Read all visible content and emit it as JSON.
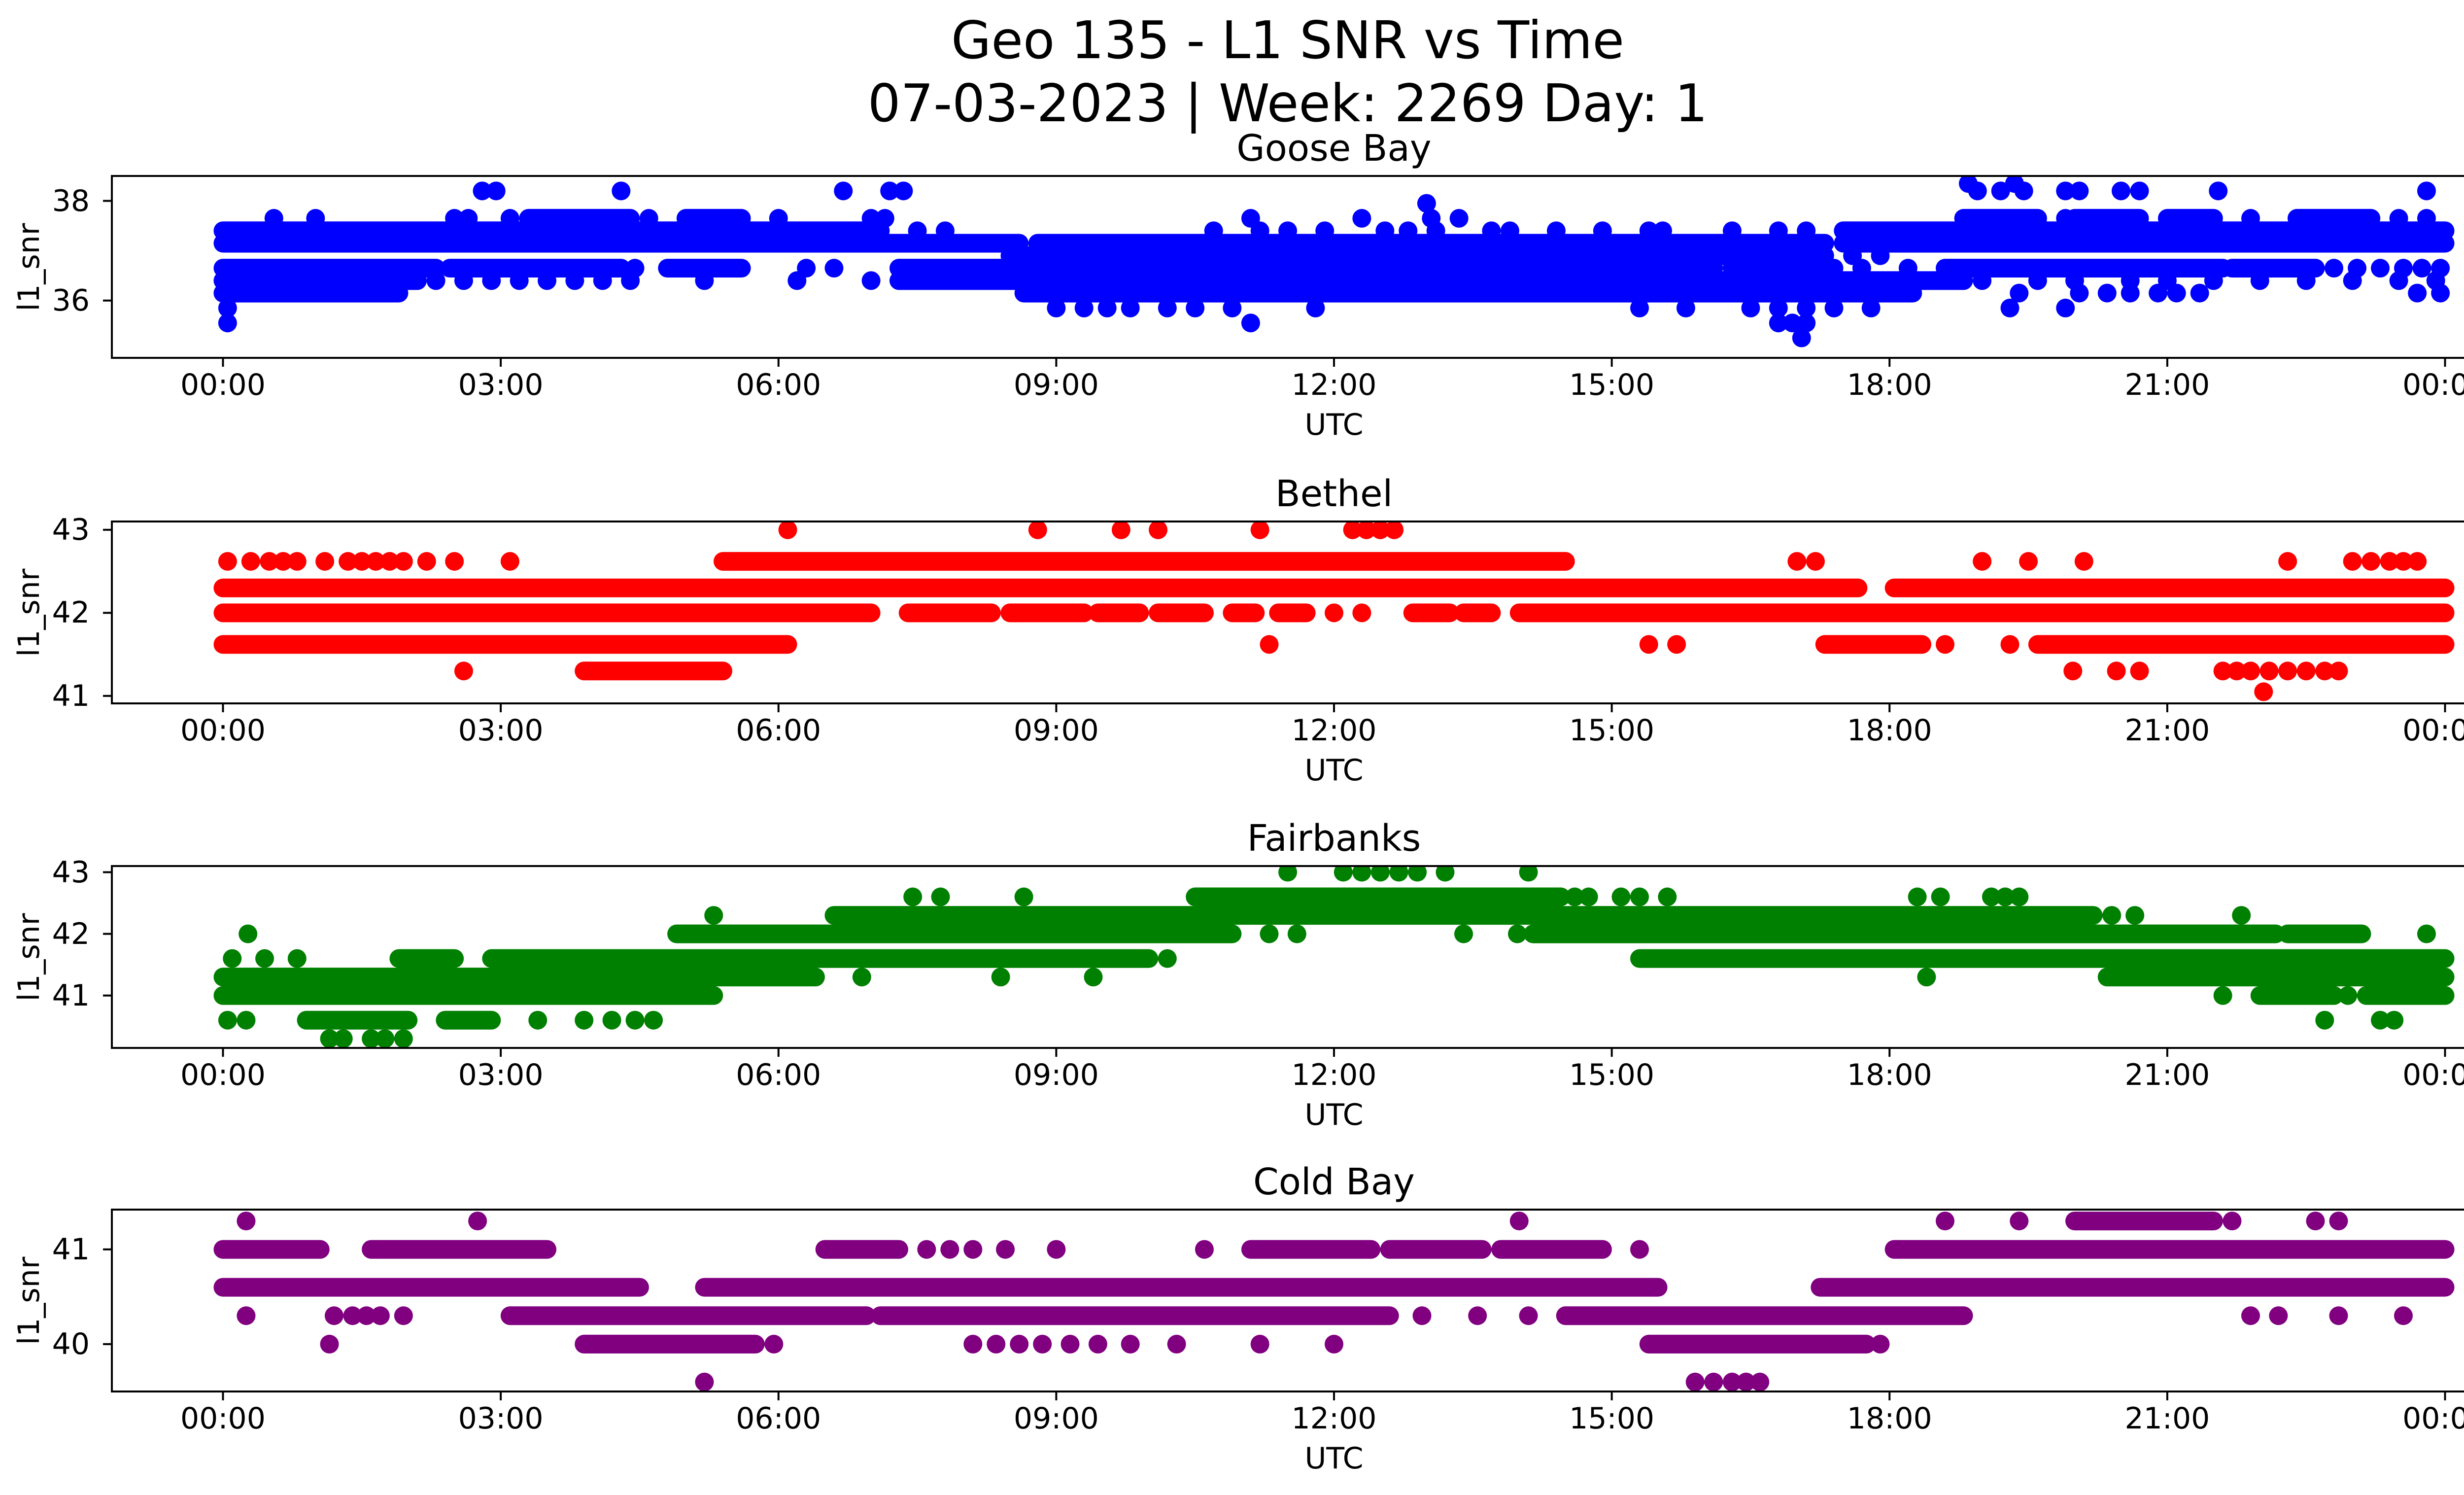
{
  "title": {
    "line1": "Geo 135 - L1 SNR vs Time",
    "line2": "07-03-2023 | Week: 2269 Day: 1"
  },
  "chart_data": [
    {
      "type": "scatter",
      "title": "Goose Bay",
      "color": "#0000ff",
      "xlabel": "UTC",
      "ylabel": "l1_snr",
      "x_ticks": [
        "00:00",
        "03:00",
        "06:00",
        "09:00",
        "12:00",
        "15:00",
        "18:00",
        "21:00",
        "00:00"
      ],
      "xlim_hours": [
        -1.2,
        25.2
      ],
      "ylim": [
        34.85,
        38.5
      ],
      "y_ticks": [
        {
          "v": 36,
          "label": "36"
        },
        {
          "v": 38,
          "label": "38"
        }
      ],
      "legend": "none",
      "grid": false,
      "bands": [
        {
          "y": 38.35,
          "solid": [],
          "dots": [
            18.85,
            19.35
          ]
        },
        {
          "y": 38.2,
          "solid": [],
          "dots": [
            2.8,
            2.95,
            4.3,
            6.7,
            7.2,
            7.35,
            18.95,
            19.2,
            19.45,
            19.9,
            20.05,
            20.5,
            20.7,
            21.55,
            23.8
          ]
        },
        {
          "y": 37.95,
          "solid": [],
          "dots": [
            13.0
          ]
        },
        {
          "y": 37.65,
          "solid": [
            [
              3.3,
              4.4
            ],
            [
              5.0,
              5.6
            ],
            [
              18.8,
              19.6
            ],
            [
              20.0,
              20.7
            ],
            [
              21.0,
              21.5
            ],
            [
              22.4,
              23.2
            ]
          ],
          "dots": [
            0.55,
            1.0,
            2.5,
            2.65,
            3.1,
            4.6,
            6.0,
            7.0,
            7.15,
            11.1,
            12.3,
            13.05,
            13.35,
            19.9,
            21.9,
            23.5,
            23.8
          ]
        },
        {
          "y": 37.4,
          "solid": [
            [
              0.0,
              7.1
            ],
            [
              17.5,
              24.0
            ]
          ],
          "dots": [
            7.5,
            7.8,
            10.7,
            11.2,
            11.5,
            11.9,
            12.55,
            12.8,
            13.1,
            13.7,
            13.9,
            14.4,
            14.9,
            15.4,
            15.55,
            16.3,
            16.8,
            17.1
          ]
        },
        {
          "y": 37.15,
          "solid": [
            [
              0.0,
              8.6
            ],
            [
              8.8,
              17.3
            ],
            [
              17.5,
              24.0
            ]
          ],
          "dots": []
        },
        {
          "y": 36.9,
          "solid": [
            [
              8.5,
              17.3
            ]
          ],
          "dots": [
            17.6,
            17.9
          ]
        },
        {
          "y": 36.65,
          "solid": [
            [
              0.0,
              2.3
            ],
            [
              2.45,
              4.3
            ],
            [
              4.8,
              5.6
            ],
            [
              7.3,
              16.1
            ],
            [
              16.3,
              17.4
            ],
            [
              18.6,
              21.6
            ],
            [
              21.7,
              22.6
            ]
          ],
          "dots": [
            4.45,
            6.3,
            6.6,
            17.7,
            18.2,
            22.8,
            23.05,
            23.3,
            23.55,
            23.75,
            23.95
          ]
        },
        {
          "y": 36.4,
          "solid": [
            [
              0.0,
              2.1
            ],
            [
              7.3,
              18.8
            ]
          ],
          "dots": [
            2.3,
            2.6,
            2.9,
            3.2,
            3.5,
            3.8,
            4.1,
            4.4,
            5.2,
            6.2,
            7.0,
            19.0,
            19.6,
            20.0,
            20.6,
            21.0,
            21.5,
            22.0,
            22.5,
            23.0,
            23.5,
            23.9
          ]
        },
        {
          "y": 36.15,
          "solid": [
            [
              0.0,
              1.9
            ],
            [
              8.65,
              18.25
            ]
          ],
          "dots": [
            19.4,
            20.05,
            20.35,
            20.6,
            20.9,
            21.1,
            21.35,
            23.7,
            23.95
          ]
        },
        {
          "y": 35.85,
          "solid": [],
          "dots": [
            0.05,
            9.0,
            9.3,
            9.55,
            9.8,
            10.2,
            10.5,
            10.9,
            11.8,
            15.3,
            15.8,
            16.5,
            16.8,
            17.1,
            17.4,
            17.8,
            19.3,
            19.9
          ]
        },
        {
          "y": 35.55,
          "solid": [],
          "dots": [
            0.05,
            11.1,
            16.8,
            16.95,
            17.1
          ]
        },
        {
          "y": 35.25,
          "solid": [],
          "dots": [
            17.05
          ]
        }
      ]
    },
    {
      "type": "scatter",
      "title": "Bethel",
      "color": "#ff0000",
      "xlabel": "UTC",
      "ylabel": "l1_snr",
      "x_ticks": [
        "00:00",
        "03:00",
        "06:00",
        "09:00",
        "12:00",
        "15:00",
        "18:00",
        "21:00",
        "00:00"
      ],
      "xlim_hours": [
        -1.2,
        25.2
      ],
      "ylim": [
        40.91,
        43.1
      ],
      "y_ticks": [
        {
          "v": 41,
          "label": "41"
        },
        {
          "v": 42,
          "label": "42"
        },
        {
          "v": 43,
          "label": "43"
        }
      ],
      "legend": "none",
      "grid": false,
      "bands": [
        {
          "y": 43.0,
          "solid": [],
          "dots": [
            6.1,
            8.8,
            9.7,
            10.1,
            11.2,
            12.2,
            12.35,
            12.5,
            12.65
          ]
        },
        {
          "y": 42.62,
          "solid": [
            [
              5.4,
              14.5
            ]
          ],
          "dots": [
            0.05,
            0.3,
            0.5,
            0.65,
            0.8,
            1.1,
            1.35,
            1.5,
            1.65,
            1.8,
            1.95,
            2.2,
            2.5,
            3.1,
            17.0,
            17.2,
            19.0,
            19.5,
            20.1,
            22.3,
            23.0,
            23.2,
            23.4,
            23.55,
            23.7
          ]
        },
        {
          "y": 42.3,
          "solid": [
            [
              0.0,
              17.66
            ],
            [
              18.05,
              24.0
            ]
          ],
          "dots": []
        },
        {
          "y": 42.0,
          "solid": [
            [
              0.0,
              7.0
            ],
            [
              7.4,
              8.3
            ],
            [
              8.5,
              9.3
            ],
            [
              9.45,
              9.9
            ],
            [
              10.1,
              10.6
            ],
            [
              10.9,
              11.15
            ],
            [
              11.4,
              11.7
            ],
            [
              12.85,
              13.25
            ],
            [
              13.4,
              13.7
            ],
            [
              14.0,
              24.0
            ]
          ],
          "dots": [
            12.0,
            12.3
          ]
        },
        {
          "y": 41.62,
          "solid": [
            [
              0.0,
              6.1
            ],
            [
              17.3,
              18.35
            ],
            [
              19.6,
              24.0
            ]
          ],
          "dots": [
            11.3,
            15.4,
            15.7,
            18.6,
            19.3
          ]
        },
        {
          "y": 41.3,
          "solid": [
            [
              3.9,
              5.4
            ]
          ],
          "dots": [
            2.6,
            19.98,
            20.45,
            20.7,
            21.6,
            21.75,
            21.9,
            22.1,
            22.3,
            22.5,
            22.7,
            22.85
          ]
        },
        {
          "y": 41.05,
          "solid": [],
          "dots": [
            22.04
          ]
        }
      ]
    },
    {
      "type": "scatter",
      "title": "Fairbanks",
      "color": "#008000",
      "xlabel": "UTC",
      "ylabel": "l1_snr",
      "x_ticks": [
        "00:00",
        "03:00",
        "06:00",
        "09:00",
        "12:00",
        "15:00",
        "18:00",
        "21:00",
        "00:00"
      ],
      "xlim_hours": [
        -1.2,
        25.2
      ],
      "ylim": [
        40.15,
        43.1
      ],
      "y_ticks": [
        {
          "v": 41,
          "label": "41"
        },
        {
          "v": 42,
          "label": "42"
        },
        {
          "v": 43,
          "label": "43"
        }
      ],
      "legend": "none",
      "grid": false,
      "bands": [
        {
          "y": 43.0,
          "solid": [],
          "dots": [
            11.5,
            12.1,
            12.3,
            12.5,
            12.7,
            12.9,
            13.2,
            14.1
          ]
        },
        {
          "y": 42.6,
          "solid": [
            [
              10.5,
              14.45
            ]
          ],
          "dots": [
            7.45,
            7.75,
            8.65,
            14.6,
            14.75,
            15.1,
            15.3,
            15.6,
            18.3,
            18.55,
            19.1,
            19.25,
            19.4
          ]
        },
        {
          "y": 42.3,
          "solid": [
            [
              6.6,
              20.2
            ]
          ],
          "dots": [
            5.3,
            20.4,
            20.65,
            21.8
          ]
        },
        {
          "y": 42.0,
          "solid": [
            [
              4.9,
              10.9
            ],
            [
              14.15,
              22.17
            ],
            [
              22.3,
              23.1
            ]
          ],
          "dots": [
            0.27,
            11.3,
            11.6,
            13.4,
            13.98,
            23.8
          ]
        },
        {
          "y": 41.6,
          "solid": [
            [
              1.9,
              2.5
            ],
            [
              2.9,
              10.0
            ],
            [
              15.3,
              24.0
            ]
          ],
          "dots": [
            0.1,
            0.45,
            0.8,
            10.2
          ]
        },
        {
          "y": 41.3,
          "solid": [
            [
              0.0,
              6.4
            ],
            [
              20.35,
              24.0
            ]
          ],
          "dots": [
            6.9,
            8.4,
            9.4,
            18.4
          ]
        },
        {
          "y": 41.0,
          "solid": [
            [
              0.0,
              5.3
            ],
            [
              22.0,
              22.8
            ],
            [
              23.15,
              24.0
            ]
          ],
          "dots": [
            21.6,
            22.95
          ]
        },
        {
          "y": 40.6,
          "solid": [
            [
              0.9,
              2.0
            ],
            [
              2.4,
              2.9
            ]
          ],
          "dots": [
            0.05,
            0.25,
            3.4,
            3.9,
            4.2,
            4.45,
            4.65,
            22.7,
            23.3,
            23.45
          ]
        },
        {
          "y": 40.3,
          "solid": [],
          "dots": [
            1.15,
            1.3,
            1.6,
            1.75,
            1.95
          ]
        }
      ]
    },
    {
      "type": "scatter",
      "title": "Cold Bay",
      "color": "#800080",
      "xlabel": "UTC",
      "ylabel": "l1_snr",
      "x_ticks": [
        "00:00",
        "03:00",
        "06:00",
        "09:00",
        "12:00",
        "15:00",
        "18:00",
        "21:00",
        "00:00"
      ],
      "xlim_hours": [
        -1.2,
        25.2
      ],
      "ylim": [
        39.5,
        41.42
      ],
      "y_ticks": [
        {
          "v": 40,
          "label": "40"
        },
        {
          "v": 41,
          "label": "41"
        }
      ],
      "legend": "none",
      "grid": false,
      "bands": [
        {
          "y": 41.3,
          "solid": [
            [
              20.0,
              21.5
            ]
          ],
          "dots": [
            0.25,
            2.75,
            14.0,
            18.6,
            19.4,
            21.7,
            22.6,
            22.85
          ]
        },
        {
          "y": 41.0,
          "solid": [
            [
              0.0,
              1.05
            ],
            [
              1.6,
              3.5
            ],
            [
              6.5,
              7.3
            ],
            [
              11.1,
              12.4
            ],
            [
              12.6,
              13.6
            ],
            [
              13.8,
              14.9
            ],
            [
              18.05,
              24.0
            ]
          ],
          "dots": [
            7.6,
            7.85,
            8.1,
            8.45,
            9.0,
            10.6,
            15.3
          ]
        },
        {
          "y": 40.6,
          "solid": [
            [
              0.0,
              4.5
            ],
            [
              5.2,
              15.5
            ],
            [
              17.25,
              24.0
            ]
          ],
          "dots": []
        },
        {
          "y": 40.3,
          "solid": [
            [
              3.1,
              6.95
            ],
            [
              7.1,
              12.6
            ],
            [
              14.5,
              18.8
            ]
          ],
          "dots": [
            0.25,
            1.2,
            1.4,
            1.55,
            1.7,
            1.95,
            12.95,
            13.55,
            14.1,
            21.9,
            22.2,
            22.85,
            23.55
          ]
        },
        {
          "y": 40.0,
          "solid": [
            [
              3.9,
              5.75
            ],
            [
              15.4,
              17.75
            ]
          ],
          "dots": [
            1.15,
            5.95,
            8.1,
            8.35,
            8.6,
            8.85,
            9.15,
            9.45,
            9.8,
            10.3,
            11.2,
            12.0,
            17.9
          ]
        },
        {
          "y": 39.6,
          "solid": [],
          "dots": [
            5.2,
            15.9,
            16.1,
            16.3,
            16.45,
            16.6
          ]
        }
      ]
    }
  ]
}
